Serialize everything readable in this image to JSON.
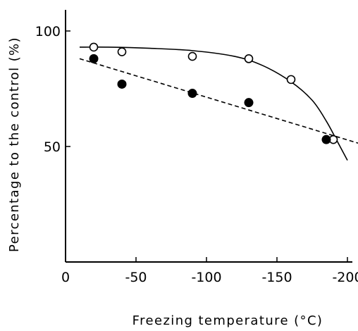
{
  "chart_data": {
    "type": "scatter",
    "xlabel": "Freezing temperature (°C)",
    "ylabel": "Percentage to the control (%)",
    "xlim": [
      0,
      -210
    ],
    "ylim": [
      0,
      100
    ],
    "x_ticks": [
      0,
      -50,
      -100,
      -150,
      -200
    ],
    "x_tick_labels": [
      "0",
      "-50",
      "-100",
      "-150",
      "-200"
    ],
    "y_ticks": [
      50,
      100
    ],
    "y_tick_labels": [
      "50",
      "100"
    ],
    "series": [
      {
        "marker": "open-circle",
        "line": "solid",
        "x": [
          -20,
          -40,
          -90,
          -130,
          -160,
          -190
        ],
        "y": [
          93,
          91,
          89,
          88,
          79,
          53
        ]
      },
      {
        "marker": "filled-circle",
        "line": "dashed",
        "x": [
          -20,
          -40,
          -90,
          -130,
          -185
        ],
        "y": [
          88,
          77,
          73,
          69,
          53
        ]
      }
    ],
    "trend_lines": [
      {
        "series_index": 0,
        "style": "solid",
        "x": [
          -10,
          -30,
          -60,
          -90,
          -120,
          -140,
          -160,
          -175,
          -185,
          -193,
          -200
        ],
        "y": [
          93,
          93,
          92.5,
          91.5,
          89,
          85,
          78,
          70,
          61,
          52,
          44
        ]
      },
      {
        "series_index": 1,
        "style": "dashed",
        "x": [
          -10,
          -210
        ],
        "y": [
          88,
          51
        ]
      }
    ],
    "colors": {
      "axis": "#000000",
      "marker": "#000000",
      "background": "#ffffff"
    }
  }
}
